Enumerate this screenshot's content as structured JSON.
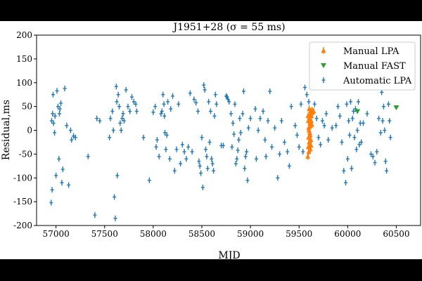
{
  "chart_data": {
    "type": "scatter",
    "title": "J1951+28 (σ = 55 ms)",
    "xlabel": "MJD",
    "ylabel": "Residual,ms",
    "xlim": [
      56800,
      60750
    ],
    "ylim": [
      -200,
      200
    ],
    "xticks": [
      57000,
      57500,
      58000,
      58500,
      59000,
      59500,
      60000,
      60500
    ],
    "yticks": [
      -200,
      -150,
      -100,
      -50,
      0,
      50,
      100,
      150,
      200
    ],
    "grid": false,
    "legend_position": "top-right",
    "series": [
      {
        "name": "Manual LPA",
        "color": "#ff7f0e",
        "marker": "triangle-up-errorbar",
        "points": [
          [
            59590,
            -55
          ],
          [
            59600,
            -45
          ],
          [
            59595,
            -35
          ],
          [
            59605,
            -25
          ],
          [
            59598,
            -15
          ],
          [
            59610,
            -5
          ],
          [
            59600,
            5
          ],
          [
            59612,
            15
          ],
          [
            59605,
            25
          ],
          [
            59615,
            35
          ],
          [
            59620,
            40
          ],
          [
            59608,
            -30
          ],
          [
            59622,
            -20
          ],
          [
            59618,
            10
          ],
          [
            59625,
            20
          ],
          [
            59630,
            38
          ],
          [
            59602,
            0
          ],
          [
            59614,
            -10
          ],
          [
            59628,
            30
          ],
          [
            59635,
            42
          ],
          [
            59640,
            38
          ],
          [
            59650,
            40
          ],
          [
            59606,
            8
          ],
          [
            59616,
            -40
          ],
          [
            59596,
            20
          ],
          [
            59632,
            12
          ],
          [
            59612,
            -22
          ],
          [
            59624,
            -32
          ],
          [
            59592,
            30
          ],
          [
            59604,
            45
          ]
        ]
      },
      {
        "name": "Manual FAST",
        "color": "#2ca02c",
        "marker": "triangle-down",
        "points": [
          [
            60100,
            40
          ],
          [
            60500,
            48
          ]
        ]
      },
      {
        "name": "Automatic LPA",
        "color": "#1f77b4",
        "marker": "errorbar",
        "points": [
          [
            56950,
            -152
          ],
          [
            56960,
            -125
          ],
          [
            56955,
            20
          ],
          [
            56965,
            35
          ],
          [
            56970,
            75
          ],
          [
            56975,
            15
          ],
          [
            56985,
            -5
          ],
          [
            56990,
            30
          ],
          [
            57000,
            -95
          ],
          [
            57010,
            83
          ],
          [
            57020,
            50
          ],
          [
            57030,
            -60
          ],
          [
            57035,
            35
          ],
          [
            57040,
            45
          ],
          [
            57050,
            57
          ],
          [
            57060,
            -110
          ],
          [
            57070,
            -82
          ],
          [
            57090,
            88
          ],
          [
            57110,
            10
          ],
          [
            57130,
            -115
          ],
          [
            57150,
            0
          ],
          [
            57160,
            -20
          ],
          [
            57180,
            -12
          ],
          [
            57200,
            -15
          ],
          [
            57330,
            -55
          ],
          [
            57400,
            -178
          ],
          [
            57420,
            25
          ],
          [
            57450,
            20
          ],
          [
            57550,
            -15
          ],
          [
            57560,
            25
          ],
          [
            57580,
            40
          ],
          [
            57590,
            0
          ],
          [
            57600,
            -140
          ],
          [
            57610,
            -185
          ],
          [
            57620,
            92
          ],
          [
            57625,
            60
          ],
          [
            57630,
            -95
          ],
          [
            57640,
            75
          ],
          [
            57650,
            50
          ],
          [
            57660,
            15
          ],
          [
            57670,
            0
          ],
          [
            57680,
            25
          ],
          [
            57690,
            35
          ],
          [
            57700,
            20
          ],
          [
            57720,
            85
          ],
          [
            57740,
            50
          ],
          [
            57760,
            40
          ],
          [
            57780,
            70
          ],
          [
            57800,
            60
          ],
          [
            57820,
            55
          ],
          [
            57830,
            40
          ],
          [
            57900,
            -15
          ],
          [
            57960,
            -105
          ],
          [
            58000,
            38
          ],
          [
            58020,
            50
          ],
          [
            58030,
            -35
          ],
          [
            58040,
            -20
          ],
          [
            58060,
            -55
          ],
          [
            58080,
            35
          ],
          [
            58090,
            40
          ],
          [
            58100,
            75
          ],
          [
            58110,
            55
          ],
          [
            58115,
            30
          ],
          [
            58120,
            -5
          ],
          [
            58130,
            -40
          ],
          [
            58140,
            -10
          ],
          [
            58150,
            60
          ],
          [
            58170,
            -60
          ],
          [
            58180,
            45
          ],
          [
            58200,
            72
          ],
          [
            58220,
            -85
          ],
          [
            58240,
            -40
          ],
          [
            58260,
            55
          ],
          [
            58280,
            -70
          ],
          [
            58300,
            -30
          ],
          [
            58320,
            -45
          ],
          [
            58340,
            -60
          ],
          [
            58360,
            -35
          ],
          [
            58380,
            78
          ],
          [
            58400,
            -45
          ],
          [
            58420,
            65
          ],
          [
            58440,
            58
          ],
          [
            58460,
            40
          ],
          [
            58470,
            -65
          ],
          [
            58480,
            -75
          ],
          [
            58490,
            -90
          ],
          [
            58500,
            -15
          ],
          [
            58510,
            -120
          ],
          [
            58520,
            95
          ],
          [
            58530,
            85
          ],
          [
            58540,
            -40
          ],
          [
            58550,
            -55
          ],
          [
            58560,
            -80
          ],
          [
            58570,
            60
          ],
          [
            58580,
            -25
          ],
          [
            58590,
            40
          ],
          [
            58600,
            -60
          ],
          [
            58610,
            -70
          ],
          [
            58620,
            -85
          ],
          [
            58630,
            30
          ],
          [
            58640,
            75
          ],
          [
            58650,
            55
          ],
          [
            58700,
            -32
          ],
          [
            58720,
            -32
          ],
          [
            58750,
            72
          ],
          [
            58760,
            70
          ],
          [
            58770,
            65
          ],
          [
            58780,
            60
          ],
          [
            58800,
            35
          ],
          [
            58810,
            -35
          ],
          [
            58820,
            15
          ],
          [
            58830,
            -8
          ],
          [
            58840,
            55
          ],
          [
            58850,
            -70
          ],
          [
            58860,
            -60
          ],
          [
            58870,
            -42
          ],
          [
            58880,
            -20
          ],
          [
            58890,
            25
          ],
          [
            58900,
            -5
          ],
          [
            58920,
            35
          ],
          [
            58930,
            82
          ],
          [
            58940,
            -80
          ],
          [
            58950,
            -55
          ],
          [
            58960,
            -45
          ],
          [
            58970,
            -105
          ],
          [
            58980,
            5
          ],
          [
            59000,
            25
          ],
          [
            59050,
            45
          ],
          [
            59060,
            -60
          ],
          [
            59080,
            0
          ],
          [
            59100,
            25
          ],
          [
            59130,
            40
          ],
          [
            59150,
            -20
          ],
          [
            59160,
            -55
          ],
          [
            59180,
            20
          ],
          [
            59200,
            82
          ],
          [
            59220,
            -35
          ],
          [
            59250,
            5
          ],
          [
            59280,
            -100
          ],
          [
            59300,
            -50
          ],
          [
            59320,
            20
          ],
          [
            59350,
            -25
          ],
          [
            59380,
            -45
          ],
          [
            59400,
            -75
          ],
          [
            59420,
            50
          ],
          [
            59460,
            10
          ],
          [
            59480,
            -10
          ],
          [
            59500,
            -35
          ],
          [
            59520,
            55
          ],
          [
            59540,
            -45
          ],
          [
            59560,
            90
          ],
          [
            59580,
            75
          ],
          [
            59600,
            60
          ],
          [
            59660,
            55
          ],
          [
            59680,
            25
          ],
          [
            59700,
            -15
          ],
          [
            59720,
            -30
          ],
          [
            59740,
            20
          ],
          [
            59760,
            10
          ],
          [
            59780,
            35
          ],
          [
            59800,
            -20
          ],
          [
            59840,
            5
          ],
          [
            59880,
            10
          ],
          [
            59900,
            50
          ],
          [
            59920,
            30
          ],
          [
            59940,
            -25
          ],
          [
            59960,
            -85
          ],
          [
            59980,
            -110
          ],
          [
            59990,
            55
          ],
          [
            60000,
            -60
          ],
          [
            60010,
            20
          ],
          [
            60020,
            -10
          ],
          [
            60030,
            60
          ],
          [
            60040,
            -80
          ],
          [
            60050,
            25
          ],
          [
            60060,
            40
          ],
          [
            60070,
            -15
          ],
          [
            60080,
            45
          ],
          [
            60090,
            -40
          ],
          [
            60100,
            0
          ],
          [
            60110,
            60
          ],
          [
            60120,
            -30
          ],
          [
            60130,
            15
          ],
          [
            60140,
            -25
          ],
          [
            60160,
            15
          ],
          [
            60200,
            35
          ],
          [
            60240,
            -50
          ],
          [
            60260,
            -55
          ],
          [
            60280,
            -68
          ],
          [
            60300,
            -45
          ],
          [
            60320,
            25
          ],
          [
            60340,
            -5
          ],
          [
            60350,
            80
          ],
          [
            60360,
            20
          ],
          [
            60370,
            50
          ],
          [
            60380,
            0
          ],
          [
            60390,
            -65
          ],
          [
            60400,
            -85
          ],
          [
            60420,
            55
          ],
          [
            60430,
            20
          ],
          [
            60440,
            -15
          ]
        ]
      }
    ]
  }
}
